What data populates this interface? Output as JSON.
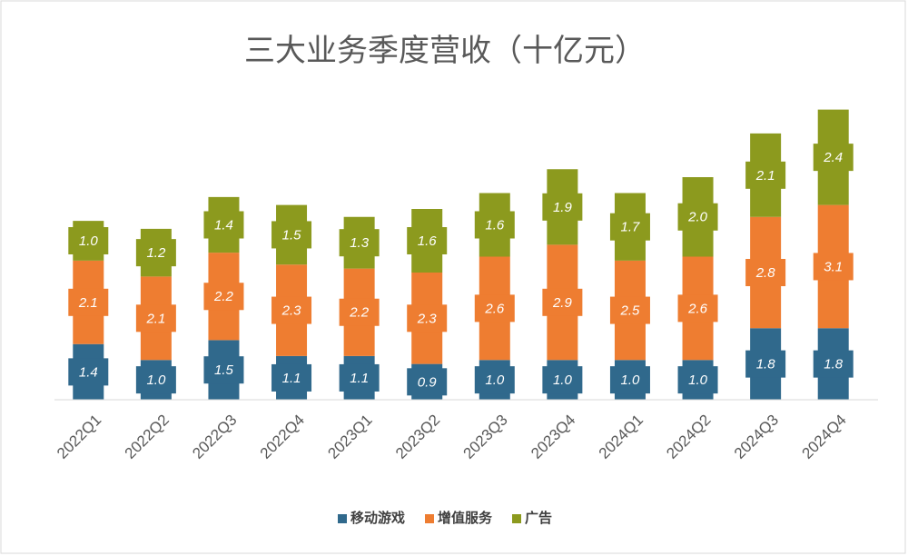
{
  "chart_data": {
    "type": "stacked-bar",
    "title": "三大业务季度营收（十亿元）",
    "categories": [
      "2022Q1",
      "2022Q2",
      "2022Q3",
      "2022Q4",
      "2023Q1",
      "2023Q2",
      "2023Q3",
      "2023Q4",
      "2024Q1",
      "2024Q2",
      "2024Q3",
      "2024Q4"
    ],
    "series": [
      {
        "name": "移动游戏",
        "color": "#30698c",
        "values": [
          1.4,
          1.0,
          1.5,
          1.1,
          1.1,
          0.9,
          1.0,
          1.0,
          1.0,
          1.0,
          1.8,
          1.8
        ],
        "value_labels": [
          "1.4",
          "1.0",
          "1.5",
          "1.1",
          "1.1",
          "0.9",
          "1.0",
          "1.0",
          "1.0",
          "1.0",
          "1.8",
          "1.8"
        ]
      },
      {
        "name": "增值服务",
        "color": "#ee7d31",
        "values": [
          2.1,
          2.1,
          2.2,
          2.3,
          2.2,
          2.3,
          2.6,
          2.9,
          2.5,
          2.6,
          2.8,
          3.1
        ],
        "value_labels": [
          "2.1",
          "2.1",
          "2.2",
          "2.3",
          "2.2",
          "2.3",
          "2.6",
          "2.9",
          "2.5",
          "2.6",
          "2.8",
          "3.1"
        ]
      },
      {
        "name": "广告",
        "color": "#8c9a1e",
        "values": [
          1.0,
          1.2,
          1.4,
          1.5,
          1.3,
          1.6,
          1.6,
          1.9,
          1.7,
          2.0,
          2.1,
          2.4
        ],
        "value_labels": [
          "1.0",
          "1.2",
          "1.4",
          "1.5",
          "1.3",
          "1.6",
          "1.6",
          "1.9",
          "1.7",
          "2.0",
          "2.1",
          "2.4"
        ]
      }
    ],
    "ylim": [
      0,
      8
    ],
    "legend": "bottom"
  }
}
